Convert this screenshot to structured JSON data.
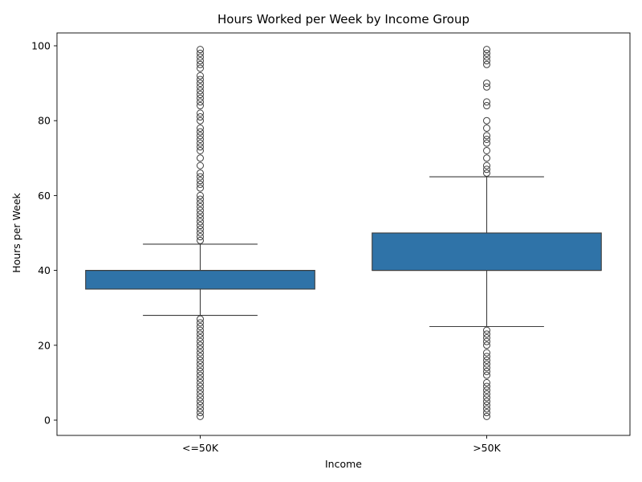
{
  "chart_data": {
    "type": "box",
    "title": "Hours Worked per Week by Income Group",
    "xlabel": "Income",
    "ylabel": "Hours per Week",
    "ylim": [
      -4,
      104
    ],
    "yticks": [
      0,
      20,
      40,
      60,
      80,
      100
    ],
    "grid": false,
    "box_color": "#2f73a8",
    "edge_color": "#3d3d3d",
    "categories": [
      "<=50K",
      ">50K"
    ],
    "boxes": [
      {
        "category": "<=50K",
        "q1": 35,
        "median": 40,
        "q3": 40,
        "whisker_low": 28,
        "whisker_high": 47,
        "outliers": [
          1,
          2,
          3,
          4,
          5,
          6,
          7,
          8,
          9,
          10,
          11,
          12,
          13,
          14,
          15,
          16,
          17,
          18,
          19,
          20,
          21,
          22,
          23,
          24,
          25,
          26,
          27,
          48,
          49,
          50,
          51,
          52,
          53,
          54,
          55,
          56,
          57,
          58,
          59,
          60,
          62,
          63,
          64,
          65,
          66,
          68,
          70,
          72,
          73,
          74,
          75,
          76,
          77,
          78,
          80,
          81,
          82,
          84,
          85,
          86,
          87,
          88,
          89,
          90,
          91,
          92,
          94,
          95,
          96,
          97,
          98,
          99
        ]
      },
      {
        "category": ">50K",
        "q1": 40,
        "median": 40,
        "q3": 50,
        "whisker_low": 25,
        "whisker_high": 65,
        "outliers": [
          1,
          2,
          3,
          4,
          5,
          6,
          7,
          8,
          9,
          10,
          12,
          13,
          14,
          15,
          16,
          17,
          18,
          20,
          21,
          22,
          23,
          24,
          66,
          67,
          68,
          70,
          72,
          74,
          75,
          76,
          78,
          80,
          84,
          85,
          89,
          90,
          95,
          96,
          97,
          98,
          99
        ]
      }
    ]
  }
}
